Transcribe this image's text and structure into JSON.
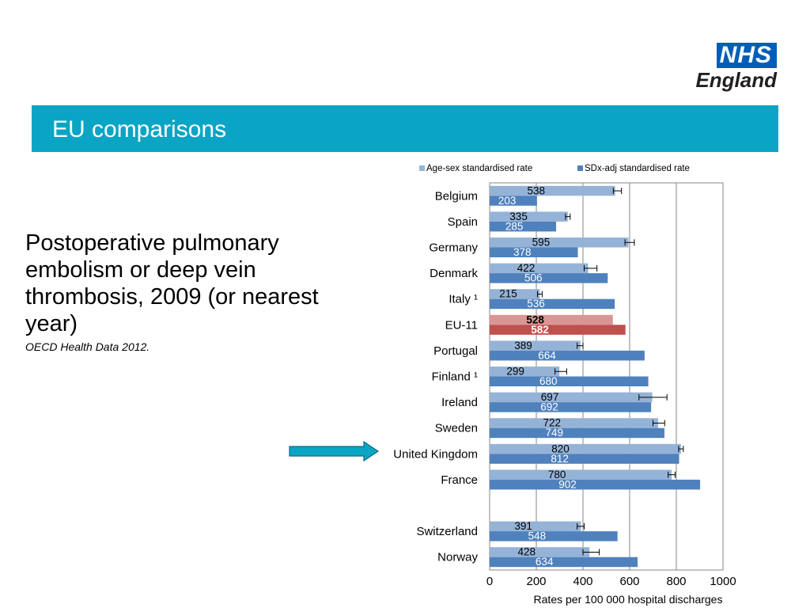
{
  "logo": {
    "main": "NHS",
    "sub": "England"
  },
  "banner": {
    "title": "EU comparisons"
  },
  "description": {
    "title": "Postoperative pulmonary embolism or deep vein thrombosis, 2009  (or nearest year)",
    "source": "OECD Health Data 2012."
  },
  "colors": {
    "banner": "#0aa5c4",
    "light_bar": "#95b3d7",
    "dark_bar": "#4f81bd",
    "eu_light_bar": "#da9694",
    "eu_dark_bar": "#c0504d",
    "arrow": "#0aa5c4"
  },
  "arrow": {
    "icon": "right-arrow-icon",
    "points_to": "United Kingdom"
  },
  "chart_data": {
    "type": "bar",
    "orientation": "horizontal",
    "categories": [
      "Belgium",
      "Spain",
      "Germany",
      "Denmark",
      "Italy ¹",
      "EU-11",
      "Portugal",
      "Finland ¹",
      "Ireland",
      "Sweden",
      "United Kingdom",
      "France",
      "",
      "Switzerland",
      "Norway"
    ],
    "series": [
      {
        "name": "Age-sex standardised rate",
        "values": [
          538,
          335,
          595,
          422,
          215,
          528,
          389,
          299,
          697,
          722,
          820,
          780,
          null,
          391,
          428
        ]
      },
      {
        "name": "SDx-adj standardised rate",
        "values": [
          203,
          285,
          378,
          506,
          536,
          582,
          664,
          680,
          692,
          749,
          812,
          902,
          null,
          548,
          634
        ]
      }
    ],
    "error_bars": {
      "series": "Age-sex standardised rate",
      "low": [
        530,
        325,
        580,
        405,
        205,
        null,
        375,
        280,
        640,
        700,
        810,
        765,
        null,
        375,
        400
      ],
      "high": [
        565,
        345,
        620,
        460,
        225,
        null,
        400,
        330,
        760,
        750,
        830,
        795,
        null,
        405,
        470
      ]
    },
    "highlight": "EU-11",
    "xlabel": "Rates  per 100 000 hospital discharges",
    "xlim": [
      0,
      1000
    ],
    "xticks": [
      "0",
      "200",
      "400",
      "600",
      "800",
      "1000"
    ],
    "grid": "vertical",
    "legend": "top"
  }
}
